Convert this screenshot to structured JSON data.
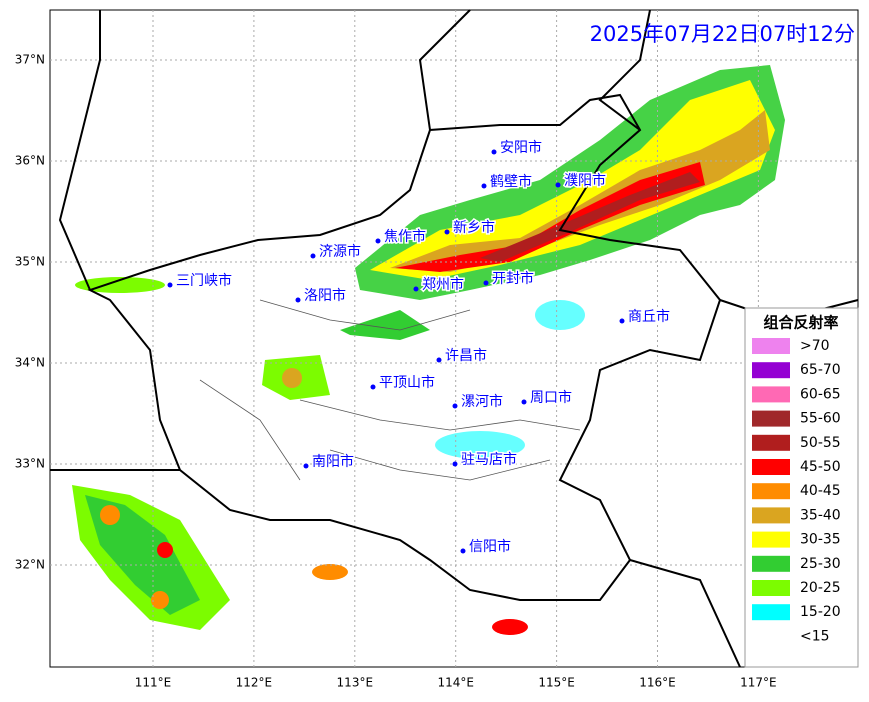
{
  "title": "2025年07月22日07时12分",
  "lat_ticks": [
    {
      "value": 37,
      "label": "37°N"
    },
    {
      "value": 36,
      "label": "36°N"
    },
    {
      "value": 35,
      "label": "35°N"
    },
    {
      "value": 34,
      "label": "34°N"
    },
    {
      "value": 33,
      "label": "33°N"
    },
    {
      "value": 32,
      "label": "32°N"
    }
  ],
  "lon_ticks": [
    {
      "value": 111,
      "label": "111°E"
    },
    {
      "value": 112,
      "label": "112°E"
    },
    {
      "value": 113,
      "label": "113°E"
    },
    {
      "value": 114,
      "label": "114°E"
    },
    {
      "value": 115,
      "label": "115°E"
    },
    {
      "value": 116,
      "label": "116°E"
    },
    {
      "value": 117,
      "label": "117°E"
    }
  ],
  "cities": [
    "安阳市",
    "鹤壁市",
    "濮阳市",
    "新乡市",
    "焦作市",
    "济源市",
    "三门峡市",
    "开封市",
    "郑州市",
    "洛阳市",
    "商丘市",
    "许昌市",
    "平顶山市",
    "漯河市",
    "周口市",
    "南阳市",
    "驻马店市",
    "信阳市"
  ],
  "legend": {
    "title": "组合反射率",
    "items": [
      {
        "label": ">70",
        "color": "#ee82ee"
      },
      {
        "label": "65-70",
        "color": "#9400d3"
      },
      {
        "label": "60-65",
        "color": "#ff69b4"
      },
      {
        "label": "55-60",
        "color": "#a0282a"
      },
      {
        "label": "50-55",
        "color": "#b01e1e"
      },
      {
        "label": "45-50",
        "color": "#ff0000"
      },
      {
        "label": "40-45",
        "color": "#ff8c00"
      },
      {
        "label": "35-40",
        "color": "#daa520"
      },
      {
        "label": "30-35",
        "color": "#ffff00"
      },
      {
        "label": "25-30",
        "color": "#32cd32"
      },
      {
        "label": "20-25",
        "color": "#7cfc00"
      },
      {
        "label": "15-20",
        "color": "#00ffff"
      },
      {
        "label": "<15",
        "color": "#ffffff"
      }
    ]
  }
}
